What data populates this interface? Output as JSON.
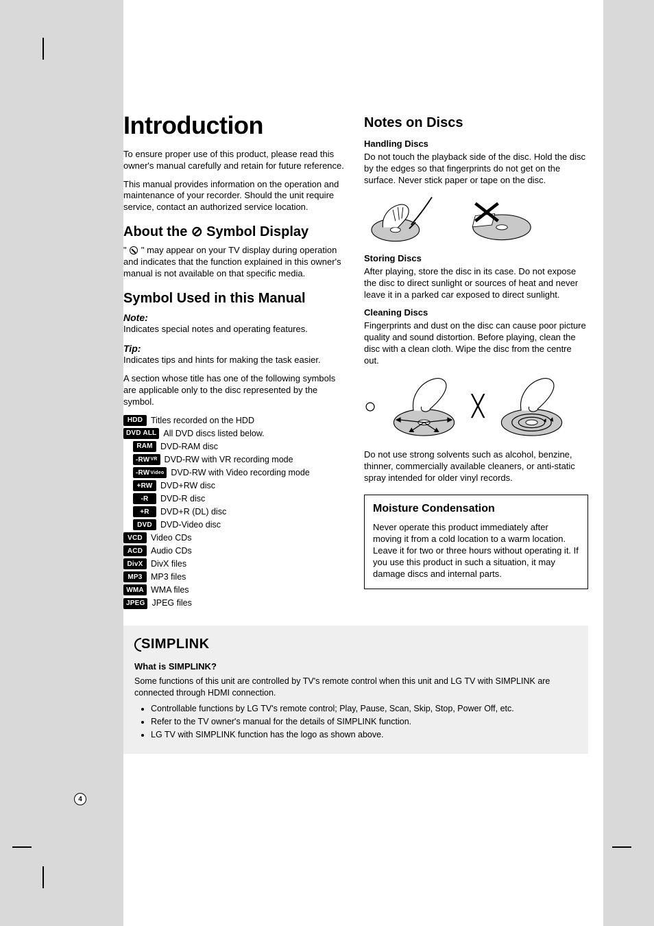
{
  "page_number": "4",
  "crop_marks_color": "#000000",
  "background_gray": "#d9d9d9",
  "left": {
    "title": "Introduction",
    "intro_p1": "To ensure proper use of this product, please read this owner's manual carefully and retain for future reference.",
    "intro_p2": "This manual provides information on the operation and maintenance of your recorder. Should the unit require service, contact an authorized service location.",
    "about_h": "About the ⊘ Symbol Display",
    "about_pre": "\" ",
    "about_post": " \" may appear on your TV display during operation and indicates that the function explained in this owner's manual is not available on that specific media.",
    "symused_h": "Symbol Used in this Manual",
    "note_h": "Note:",
    "note_p": "Indicates special notes and operating features.",
    "tip_h": "Tip:",
    "tip_p": "Indicates tips and hints for making the task easier.",
    "section_p": "A section whose title has one of the following symbols are applicable only to the disc represented by the symbol.",
    "badges": [
      {
        "label": "HDD",
        "text": "Titles recorded on the HDD",
        "indent": 0
      },
      {
        "label": "DVD ALL",
        "text": "All DVD discs listed below.",
        "indent": 0
      },
      {
        "label": "RAM",
        "text": "DVD-RAM disc",
        "indent": 1
      },
      {
        "label": "-RW",
        "sub": "VR",
        "text": "DVD-RW with VR recording mode",
        "indent": 1
      },
      {
        "label": "-RW",
        "sub": "Video",
        "text": "DVD-RW with Video recording mode",
        "indent": 1
      },
      {
        "label": "+RW",
        "text": "DVD+RW disc",
        "indent": 1
      },
      {
        "label": "-R",
        "text": "DVD-R disc",
        "indent": 1
      },
      {
        "label": "+R",
        "text": "DVD+R (DL) disc",
        "indent": 1
      },
      {
        "label": "DVD",
        "text": "DVD-Video disc",
        "indent": 1
      },
      {
        "label": "VCD",
        "text": "Video CDs",
        "indent": 0
      },
      {
        "label": "ACD",
        "text": "Audio CDs",
        "indent": 0
      },
      {
        "label": "DivX",
        "text": "DivX files",
        "indent": 0
      },
      {
        "label": "MP3",
        "text": "MP3 files",
        "indent": 0
      },
      {
        "label": "WMA",
        "text": "WMA files",
        "indent": 0
      },
      {
        "label": "JPEG",
        "text": "JPEG files",
        "indent": 0
      }
    ]
  },
  "right": {
    "title": "Notes on Discs",
    "handling_h": "Handling Discs",
    "handling_p": "Do not touch the playback side of the disc. Hold the disc by the edges so that fingerprints do not get on the surface. Never stick paper or tape on the disc.",
    "storing_h": "Storing Discs",
    "storing_p": "After playing, store the disc in its case. Do not expose the disc to direct sunlight or sources of heat and never leave it in a parked car exposed to direct sunlight.",
    "cleaning_h": "Cleaning Discs",
    "cleaning_p": "Fingerprints and dust on the disc can cause poor picture quality and sound distortion. Before playing, clean the disc with a clean cloth. Wipe the disc from the centre out.",
    "solvent_p": "Do not use strong solvents such as alcohol, benzine, thinner, commercially available cleaners, or anti-static spray intended for older vinyl records.",
    "moisture_h": "Moisture Condensation",
    "moisture_p": "Never operate this product immediately after moving it from a cold location to a warm location. Leave it for two or three hours without operating it. If you use this product in such a situation, it may damage discs and internal parts.",
    "mark_ok": "○",
    "mark_bad": "╳"
  },
  "simplink": {
    "logo_text": "SIMPLINK",
    "heading": "What is SIMPLINK?",
    "intro": "Some functions of this unit are controlled by TV's remote control when this unit and LG TV with SIMPLINK are connected through HDMI connection.",
    "bullets": [
      "Controllable functions by LG TV's remote control; Play, Pause, Scan, Skip, Stop, Power Off, etc.",
      "Refer to the TV owner's manual for the details of SIMPLINK function.",
      "LG TV with SIMPLINK function has the logo as shown above."
    ]
  },
  "figures": {
    "disc_color": "#c8c8c8",
    "stroke": "#000000",
    "x_color": "#000000"
  }
}
